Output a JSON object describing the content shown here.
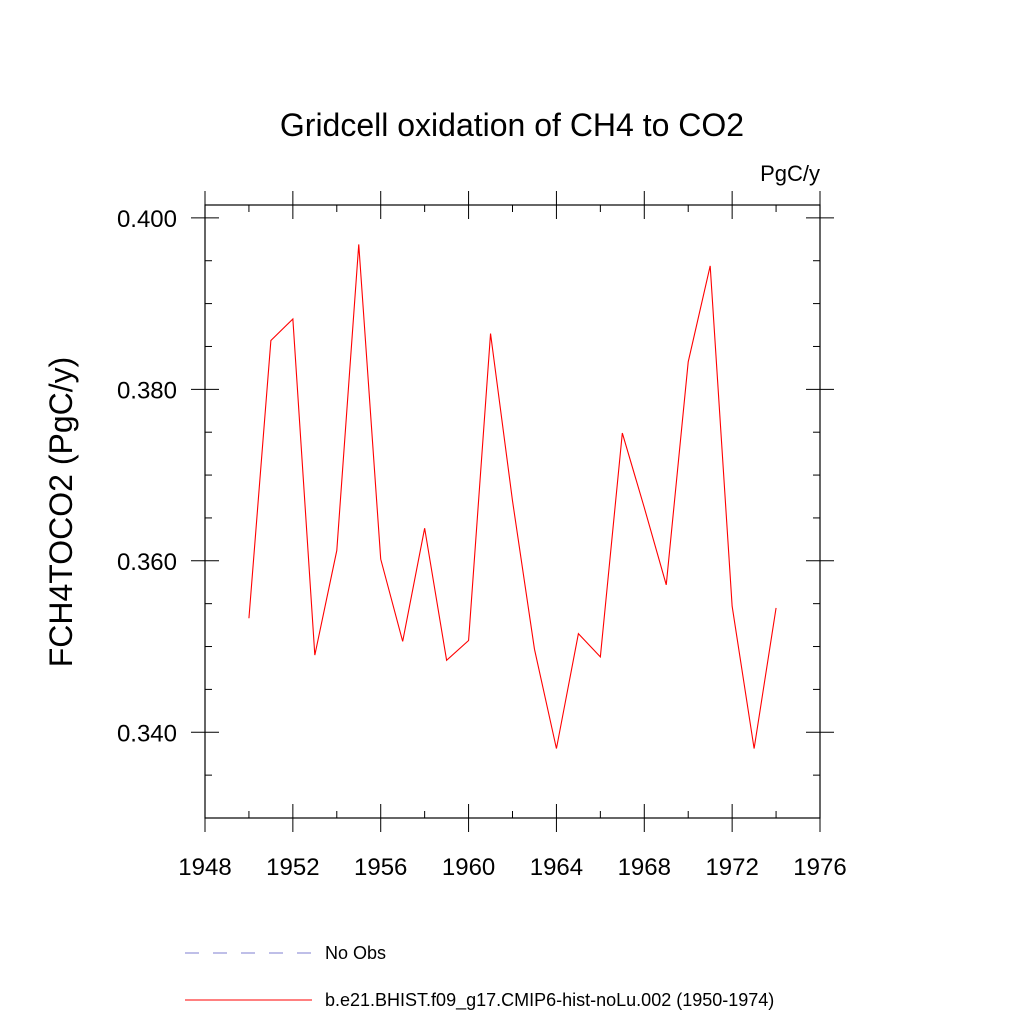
{
  "chart_data": {
    "type": "line",
    "title": "Gridcell oxidation of CH4 to CO2",
    "units_label": "PgC/y",
    "ylabel": "FCH4TOCO2  (PgC/y)",
    "xlabel": "",
    "xlim": [
      1948,
      1976
    ],
    "ylim": [
      0.33,
      0.4015
    ],
    "x_major_ticks": [
      1948,
      1952,
      1956,
      1960,
      1964,
      1968,
      1972,
      1976
    ],
    "y_major_ticks": [
      0.34,
      0.36,
      0.38,
      0.4
    ],
    "y_tick_labels": [
      "0.340",
      "0.360",
      "0.380",
      "0.400"
    ],
    "series": [
      {
        "name": "b.e21.BHIST.f09_g17.CMIP6-hist-noLu.002 (1950-1974)",
        "color": "#ff0000",
        "style": "solid",
        "x": [
          1950,
          1951,
          1952,
          1953,
          1954,
          1955,
          1956,
          1957,
          1958,
          1959,
          1960,
          1961,
          1962,
          1963,
          1964,
          1965,
          1966,
          1967,
          1968,
          1969,
          1970,
          1971,
          1972,
          1973,
          1974
        ],
        "values": [
          0.3533,
          0.3857,
          0.3882,
          0.349,
          0.3612,
          0.3969,
          0.3602,
          0.3506,
          0.3638,
          0.3484,
          0.3507,
          0.3865,
          0.367,
          0.3497,
          0.3381,
          0.3515,
          0.3488,
          0.3749,
          0.3662,
          0.3572,
          0.3832,
          0.3944,
          0.3547,
          0.3381,
          0.3545
        ]
      }
    ],
    "legend": [
      {
        "label": "No Obs",
        "color": "#7f7fd0",
        "style": "dashed"
      },
      {
        "label": "b.e21.BHIST.f09_g17.CMIP6-hist-noLu.002 (1950-1974)",
        "color": "#ff0000",
        "style": "solid"
      }
    ]
  }
}
